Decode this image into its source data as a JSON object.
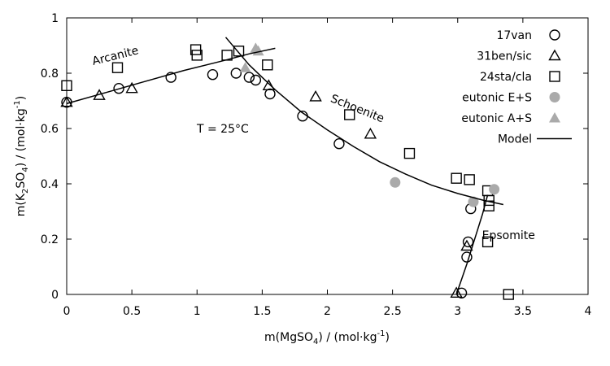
{
  "chart_data": {
    "type": "scatter",
    "title": "",
    "temperature_label": "T = 25°C",
    "xlabel": {
      "prefix": "m(MgSO",
      "sub": "4",
      "mid": ") / (mol·kg",
      "sup": "-1",
      "suffix": ")"
    },
    "ylabel": {
      "prefix": "m(K",
      "sub1": "2",
      "mid1": "SO",
      "sub2": "4",
      "mid2": ") / (mol·kg",
      "sup": "-1",
      "suffix": ")"
    },
    "xlim": [
      0,
      4
    ],
    "ylim": [
      0,
      1
    ],
    "xticks": [
      0,
      0.5,
      1,
      1.5,
      2,
      2.5,
      3,
      3.5,
      4
    ],
    "xtick_labels": [
      "0",
      "0.5",
      "1",
      "1.5",
      "2",
      "2.5",
      "3",
      "3.5",
      "4"
    ],
    "yticks": [
      0,
      0.2,
      0.4,
      0.6,
      0.8,
      1
    ],
    "ytick_labels": [
      "0",
      "0.2",
      "0.4",
      "0.6",
      "0.8",
      "1"
    ],
    "grid": false,
    "legend_position": "top-right",
    "annotations": [
      {
        "text": "Arcanite",
        "x": 0.38,
        "y": 0.85,
        "angle": -14
      },
      {
        "text": "Schoenite",
        "x": 2.22,
        "y": 0.66,
        "angle": 22
      },
      {
        "text": "Epsomite",
        "x": 3.39,
        "y": 0.2,
        "angle": 0
      }
    ],
    "series": [
      {
        "name": "17van",
        "marker": "circle",
        "color": "#000000",
        "x": [
          0,
          0.4,
          0.8,
          1.12,
          1.3,
          1.4,
          1.45,
          1.56,
          1.81,
          2.09,
          3.03,
          3.07,
          3.08,
          3.1
        ],
        "y": [
          0.695,
          0.745,
          0.785,
          0.795,
          0.8,
          0.785,
          0.775,
          0.725,
          0.645,
          0.545,
          0.005,
          0.135,
          0.19,
          0.31
        ]
      },
      {
        "name": "31ben/sic",
        "marker": "triangle",
        "color": "#000000",
        "x": [
          0,
          0.25,
          0.5,
          1.55,
          1.91,
          2.33,
          2.99,
          3.07
        ],
        "y": [
          0.695,
          0.72,
          0.745,
          0.755,
          0.715,
          0.58,
          0.005,
          0.175
        ]
      },
      {
        "name": "24sta/cla",
        "marker": "square",
        "color": "#000000",
        "x": [
          0,
          0.39,
          0.99,
          1.0,
          1.23,
          1.32,
          1.54,
          2.17,
          2.63,
          2.99,
          3.09,
          3.23,
          3.24,
          3.24,
          3.23,
          3.39
        ],
        "y": [
          0.755,
          0.82,
          0.885,
          0.865,
          0.865,
          0.88,
          0.83,
          0.65,
          0.51,
          0.42,
          0.415,
          0.375,
          0.34,
          0.32,
          0.19,
          0.0
        ]
      },
      {
        "name": "eutonic E+S",
        "marker": "filled-circle",
        "color": "#aaaaaa",
        "x": [
          2.52,
          3.12,
          3.28
        ],
        "y": [
          0.405,
          0.335,
          0.38
        ]
      },
      {
        "name": "eutonic A+S",
        "marker": "filled-triangle",
        "color": "#aaaaaa",
        "x": [
          1.37,
          1.45,
          1.47
        ],
        "y": [
          0.82,
          0.89,
          0.88
        ]
      },
      {
        "name": "Model",
        "marker": "line",
        "color": "#000000",
        "segments": [
          {
            "x": [
              0,
              0.3,
              0.6,
              0.9,
              1.2,
              1.4,
              1.5,
              1.6
            ],
            "y": [
              0.69,
              0.73,
              0.77,
              0.81,
              0.845,
              0.87,
              0.88,
              0.89
            ]
          },
          {
            "x": [
              1.22,
              1.4,
              1.6,
              1.8,
              2.0,
              2.2,
              2.4,
              2.6,
              2.8,
              3.0,
              3.2,
              3.35
            ],
            "y": [
              0.93,
              0.83,
              0.74,
              0.66,
              0.595,
              0.535,
              0.48,
              0.435,
              0.395,
              0.365,
              0.34,
              0.325
            ]
          },
          {
            "x": [
              2.99,
              3.03,
              3.07,
              3.11,
              3.15,
              3.19,
              3.23
            ],
            "y": [
              0.0,
              0.055,
              0.11,
              0.17,
              0.23,
              0.29,
              0.36
            ]
          }
        ]
      }
    ]
  }
}
